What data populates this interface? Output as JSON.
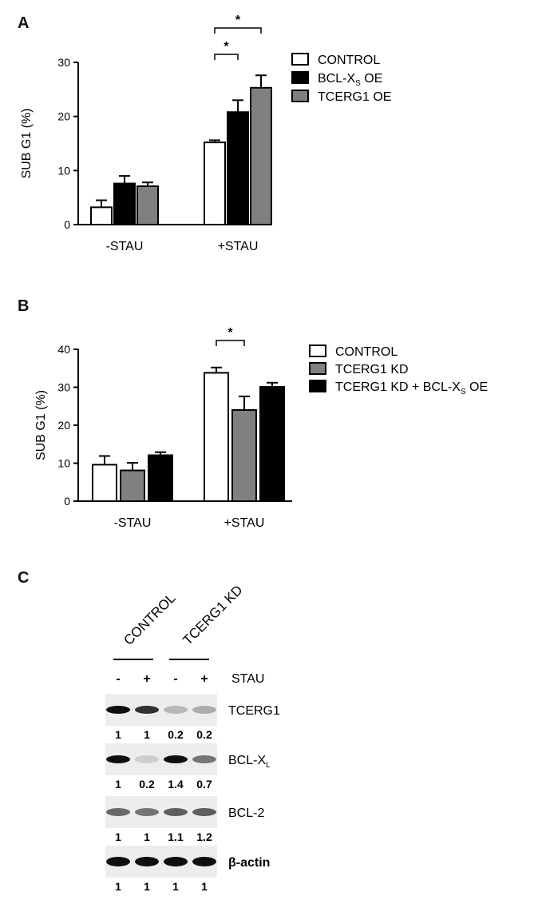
{
  "panels": {
    "A": {
      "letter": "A"
    },
    "B": {
      "letter": "B"
    },
    "C": {
      "letter": "C"
    }
  },
  "colors": {
    "white_bar": "#ffffff",
    "black_bar": "#000000",
    "grey_bar": "#808080",
    "axis": "#000000"
  },
  "chart_data": [
    {
      "panel": "A",
      "type": "bar",
      "ylabel": "SUB G1 (%)",
      "ylim": [
        0,
        30
      ],
      "yticks": [
        0,
        10,
        20,
        30
      ],
      "categories": [
        "-STAU",
        "+STAU"
      ],
      "legend_position": "top-right",
      "series": [
        {
          "name": "CONTROL",
          "legend_text": "CONTROL",
          "legend_sub": "",
          "legend_after": "",
          "color": "#ffffff",
          "values": [
            3.2,
            15.2
          ],
          "errors": [
            1.3,
            0.4
          ]
        },
        {
          "name": "BCL-XS OE",
          "legend_text": "BCL-X",
          "legend_sub": "S",
          "legend_after": " OE",
          "color": "#000000",
          "values": [
            7.6,
            20.8
          ],
          "errors": [
            1.4,
            2.2
          ]
        },
        {
          "name": "TCERG1 OE",
          "legend_text": "TCERG1 OE",
          "legend_sub": "",
          "legend_after": "",
          "color": "#808080",
          "values": [
            7.1,
            25.3
          ],
          "errors": [
            0.7,
            2.3
          ]
        }
      ],
      "significance": [
        {
          "category": "+STAU",
          "from_series": 0,
          "to_series": 1,
          "label": "*",
          "level": 0
        },
        {
          "category": "+STAU",
          "from_series": 0,
          "to_series": 2,
          "label": "*",
          "level": 1
        }
      ]
    },
    {
      "panel": "B",
      "type": "bar",
      "ylabel": "SUB G1 (%)",
      "ylim": [
        0,
        40
      ],
      "yticks": [
        0,
        10,
        20,
        30,
        40
      ],
      "categories": [
        "-STAU",
        "+STAU"
      ],
      "legend_position": "top-right",
      "series": [
        {
          "name": "CONTROL",
          "legend_text": "CONTROL",
          "legend_sub": "",
          "legend_after": "",
          "color": "#ffffff",
          "values": [
            9.6,
            33.8
          ],
          "errors": [
            2.3,
            1.4
          ]
        },
        {
          "name": "TCERG1 KD",
          "legend_text": "TCERG1 KD",
          "legend_sub": "",
          "legend_after": "",
          "color": "#808080",
          "values": [
            8.1,
            24.0
          ],
          "errors": [
            2.0,
            3.6
          ]
        },
        {
          "name": "TCERG1 KD + BCL-XS OE",
          "legend_text": "TCERG1 KD + BCL-X",
          "legend_sub": "S",
          "legend_after": " OE",
          "color": "#000000",
          "values": [
            12.1,
            30.1
          ],
          "errors": [
            0.8,
            1.1
          ]
        }
      ],
      "significance": [
        {
          "category": "+STAU",
          "from_series": 0,
          "to_series": 1,
          "label": "*",
          "level": 0
        }
      ]
    }
  ],
  "western_blot": {
    "groups": [
      "CONTROL",
      "TCERG1 KD"
    ],
    "stau_signs": [
      "-",
      "+",
      "-",
      "+"
    ],
    "stau_label": "STAU",
    "blots": [
      {
        "label": "TCERG1",
        "label_sub": "",
        "quant": [
          "1",
          "1",
          "0.2",
          "0.2"
        ],
        "intensity": [
          1,
          0.85,
          0.25,
          0.3
        ]
      },
      {
        "label": "BCL-X",
        "label_sub": "L",
        "quant": [
          "1",
          "0.2",
          "1.4",
          "0.7"
        ],
        "intensity": [
          1,
          0.15,
          1,
          0.55
        ]
      },
      {
        "label": "BCL-2",
        "label_sub": "",
        "quant": [
          "1",
          "1",
          "1.1",
          "1.2"
        ],
        "intensity": [
          0.6,
          0.55,
          0.65,
          0.65
        ]
      },
      {
        "label": "β-actin",
        "label_sub": "",
        "quant": [
          "1",
          "1",
          "1",
          "1"
        ],
        "intensity": [
          1,
          1,
          1,
          1
        ]
      }
    ]
  }
}
